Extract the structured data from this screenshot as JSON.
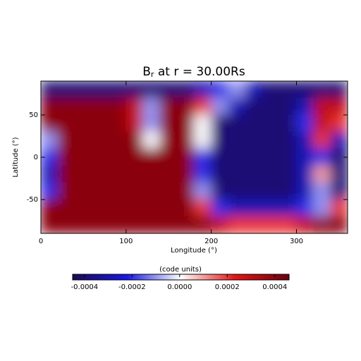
{
  "chart_data": {
    "type": "heatmap",
    "title": [
      "B",
      "r",
      " at r = 30.00Rs"
    ],
    "xlabel": "Longitude (°)",
    "ylabel": "Latitude (°)",
    "x": [
      10,
      30,
      50,
      70,
      90,
      110,
      130,
      150,
      170,
      190,
      210,
      230,
      250,
      270,
      290,
      310,
      330,
      350
    ],
    "y": [
      80,
      60,
      40,
      20,
      0,
      -20,
      -40,
      -60,
      -80
    ],
    "z": [
      [
        -0.0004,
        -0.0004,
        -0.0004,
        -0.0004,
        -0.0004,
        -0.0004,
        -0.0004,
        -0.0004,
        -0.0004,
        -0.0003,
        -0.0002,
        -0.0001,
        -0.0003,
        -0.0004,
        -0.0004,
        -0.0004,
        -0.0004,
        -0.0004
      ],
      [
        0.0004,
        0.0004,
        0.0004,
        0.0004,
        0.0004,
        0.0003,
        -0.0001,
        0.0004,
        0.0004,
        0.0002,
        -0.0001,
        -0.0003,
        -0.0004,
        -0.0004,
        -0.0004,
        -0.0003,
        0.0003,
        0.0003
      ],
      [
        0.0004,
        0.0004,
        0.0004,
        0.0004,
        0.0004,
        0.0003,
        -0.0001,
        0.0004,
        0.0004,
        0,
        -0.0004,
        -0.0004,
        -0.0004,
        -0.0004,
        -0.0004,
        -0.0002,
        0.0003,
        0.0002
      ],
      [
        -0.0001,
        0.0004,
        0.0004,
        0.0004,
        0.0004,
        0.0004,
        0,
        0.0004,
        0.0004,
        0,
        -0.0004,
        -0.0004,
        -0.0004,
        -0.0004,
        -0.0004,
        -0.0003,
        0.0002,
        -0.0003
      ],
      [
        -0.0002,
        0.0004,
        0.0004,
        0.0004,
        0.0004,
        0.0004,
        0.0004,
        0.0004,
        0.0004,
        -0.0002,
        -0.0004,
        -0.0004,
        -0.0004,
        -0.0004,
        -0.0004,
        -0.0003,
        -0.0002,
        -0.0004
      ],
      [
        -0.0003,
        0.0004,
        0.0004,
        0.0004,
        0.0004,
        0.0004,
        0.0004,
        0.0004,
        0.0004,
        -0.0002,
        -0.0004,
        -0.0004,
        -0.0004,
        -0.0004,
        -0.0004,
        -0.0003,
        0.0001,
        -0.0004
      ],
      [
        -0.0002,
        0.0004,
        0.0004,
        0.0004,
        0.0004,
        0.0004,
        0.0004,
        0.0004,
        0.0004,
        -0.0001,
        -0.0004,
        -0.0004,
        -0.0004,
        -0.0004,
        -0.0004,
        -0.0003,
        -0.0001,
        -0.0004
      ],
      [
        0.0004,
        0.0004,
        0.0004,
        0.0004,
        0.0004,
        0.0004,
        0.0004,
        0.0004,
        0.0004,
        0.0002,
        -0.0002,
        -0.0003,
        -0.0003,
        -0.0003,
        -0.0003,
        -0.0002,
        -0.0001,
        0.0002
      ],
      [
        0.0004,
        0.0004,
        0.0004,
        0.0004,
        0.0004,
        0.0004,
        0.0004,
        0.0004,
        0.0004,
        0.0004,
        0.0003,
        0.0002,
        0.0002,
        0.0002,
        0.0002,
        0.0003,
        0.0004,
        0.0004
      ]
    ],
    "xlim": [
      0,
      360
    ],
    "ylim": [
      -90,
      90
    ],
    "xticks": [
      0,
      100,
      200,
      300
    ],
    "yticks": [
      -50,
      0,
      50
    ],
    "colorbar_label": "(code units)",
    "clim": [
      -0.00045,
      0.00046
    ],
    "colorbar_ticks": [
      -0.0004,
      -0.0002,
      {
        "value": 0,
        "label": "0.0000"
      },
      0.0002,
      0.0004
    ],
    "colormap": [
      "#1c0a55",
      "#1818e6",
      "#ffffff",
      "#e61414",
      "#6b0010"
    ]
  }
}
